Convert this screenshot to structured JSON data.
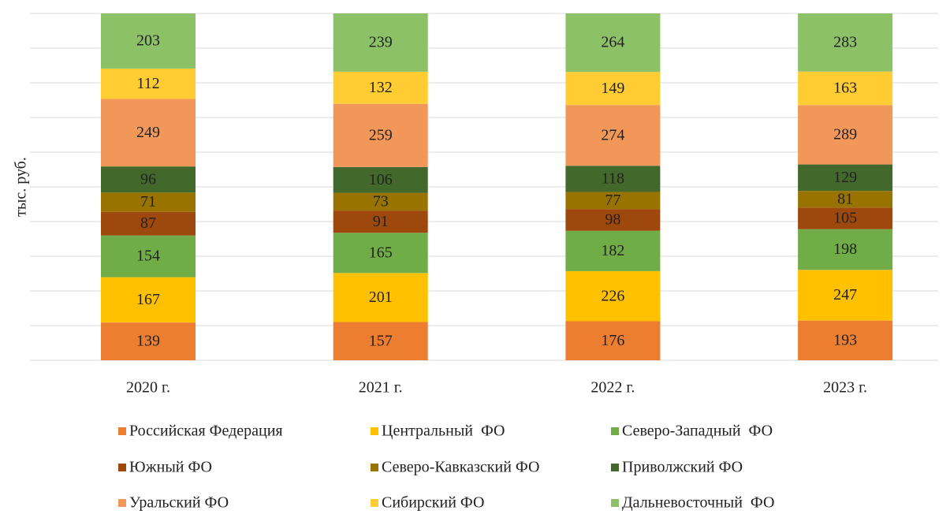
{
  "chart_data": {
    "type": "bar",
    "stacked": "percent",
    "y_label": "тыс. руб.",
    "categories": [
      "2020 г.",
      "2021 г.",
      "2022 г.",
      "2023 г."
    ],
    "ylim": [
      0,
      100
    ],
    "yticks": [
      0,
      10,
      20,
      30,
      40,
      50,
      60,
      70,
      80,
      90,
      100
    ],
    "show_tick_labels": false,
    "grid": true,
    "legend": "bottom",
    "series": [
      {
        "name": "Российская Федерация",
        "color": "#ED7D31",
        "values": [
          139,
          157,
          176,
          193
        ]
      },
      {
        "name": "Центральный  ФО",
        "color": "#FFC000",
        "values": [
          167,
          201,
          226,
          247
        ]
      },
      {
        "name": "Северо-Западный  ФО",
        "color": "#70AD47",
        "values": [
          154,
          165,
          182,
          198
        ]
      },
      {
        "name": "Южный ФО",
        "color": "#9E480E",
        "values": [
          87,
          91,
          98,
          105
        ]
      },
      {
        "name": "Северо-Кавказский ФО",
        "color": "#997300",
        "values": [
          71,
          73,
          77,
          81
        ]
      },
      {
        "name": "Приволжский ФО",
        "color": "#43682B",
        "values": [
          96,
          106,
          118,
          129
        ]
      },
      {
        "name": "Уральский ФО",
        "color": "#F1975A",
        "values": [
          249,
          259,
          274,
          289
        ]
      },
      {
        "name": "Сибирский ФО",
        "color": "#FFCD33",
        "values": [
          112,
          132,
          149,
          163
        ]
      },
      {
        "name": "Дальневосточный  ФО",
        "color": "#8CC168",
        "values": [
          203,
          239,
          264,
          283
        ]
      }
    ]
  }
}
